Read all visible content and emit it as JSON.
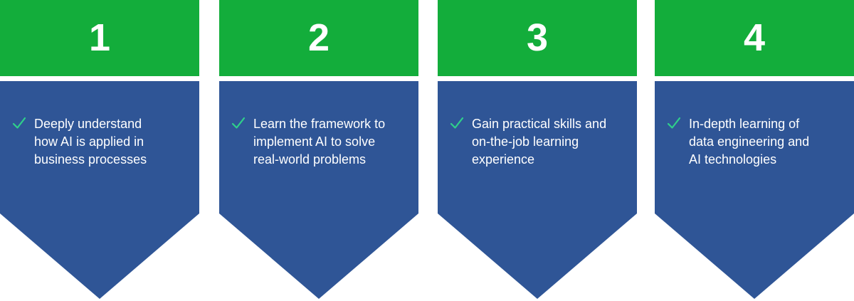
{
  "colors": {
    "green": "#13ad3b",
    "blue": "#2f5596",
    "check": "#2fd08a",
    "text": "#ffffff"
  },
  "steps": [
    {
      "number": "1",
      "lines": [
        "Deeply understand",
        "how AI is applied in",
        "business processes"
      ],
      "icon": "check-icon"
    },
    {
      "number": "2",
      "lines": [
        "Learn the framework to",
        "implement AI to solve",
        "real-world problems"
      ],
      "icon": "check-icon"
    },
    {
      "number": "3",
      "lines": [
        "Gain practical skills and",
        "on-the-job learning",
        "experience"
      ],
      "icon": "check-icon"
    },
    {
      "number": "4",
      "lines": [
        "In-depth learning of",
        "data engineering and",
        "AI technologies"
      ],
      "icon": "check-icon"
    }
  ]
}
